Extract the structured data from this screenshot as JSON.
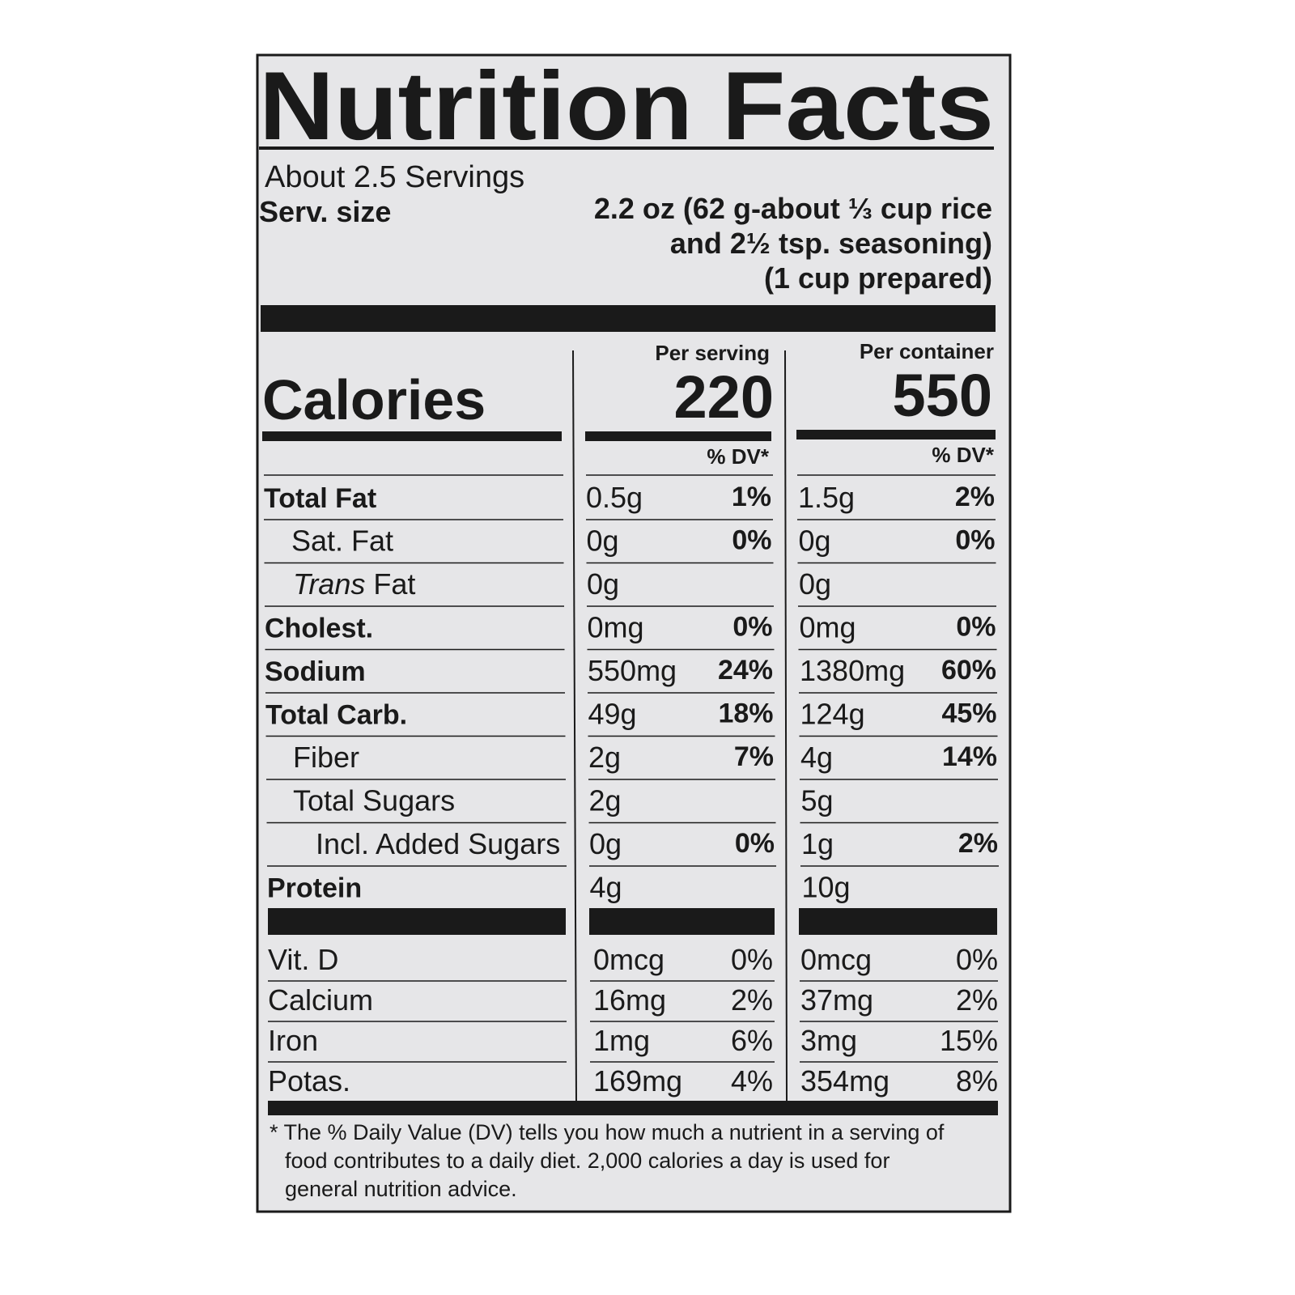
{
  "header": {
    "title": "Nutrition Facts",
    "servings": "About 2.5 Servings",
    "serving_size_label": "Serv. size",
    "serving_size_lines": [
      "2.2 oz (62 g-about ⅓ cup rice",
      "and 2½ tsp. seasoning)",
      "(1 cup prepared)"
    ]
  },
  "calories": {
    "label": "Calories",
    "per_serving_label": "Per serving",
    "per_serving": "220",
    "per_container_label": "Per container",
    "per_container": "550",
    "dv_header_serving": "% DV*",
    "dv_header_container": "% DV*"
  },
  "nutrients": [
    {
      "name": "Total Fat",
      "serving": {
        "amount": "0.5g",
        "dv": "1%"
      },
      "container": {
        "amount": "1.5g",
        "dv": "2%"
      }
    },
    {
      "name": "Sat. Fat",
      "serving": {
        "amount": "0g",
        "dv": "0%"
      },
      "container": {
        "amount": "0g",
        "dv": "0%"
      }
    },
    {
      "name_italic": "Trans",
      "name": "Fat",
      "serving": {
        "amount": "0g"
      },
      "container": {
        "amount": "0g"
      }
    },
    {
      "name": "Cholest.",
      "serving": {
        "amount": "0mg",
        "dv": "0%"
      },
      "container": {
        "amount": "0mg",
        "dv": "0%"
      }
    },
    {
      "name": "Sodium",
      "serving": {
        "amount": "550mg",
        "dv": "24%"
      },
      "container": {
        "amount": "1380mg",
        "dv": "60%"
      }
    },
    {
      "name": "Total Carb.",
      "serving": {
        "amount": "49g",
        "dv": "18%"
      },
      "container": {
        "amount": "124g",
        "dv": "45%"
      }
    },
    {
      "name": "Fiber",
      "serving": {
        "amount": "2g",
        "dv": "7%"
      },
      "container": {
        "amount": "4g",
        "dv": "14%"
      }
    },
    {
      "name": "Total Sugars",
      "serving": {
        "amount": "2g"
      },
      "container": {
        "amount": "5g"
      }
    },
    {
      "name": "Incl. Added Sugars",
      "serving": {
        "amount": "0g",
        "dv": "0%"
      },
      "container": {
        "amount": "1g",
        "dv": "2%"
      }
    },
    {
      "name": "Protein",
      "serving": {
        "amount": "4g"
      },
      "container": {
        "amount": "10g"
      }
    }
  ],
  "vitamins": [
    {
      "name": "Vit. D",
      "serving": {
        "amount": "0mcg",
        "dv": "0%"
      },
      "container": {
        "amount": "0mcg",
        "dv": "0%"
      }
    },
    {
      "name": "Calcium",
      "serving": {
        "amount": "16mg",
        "dv": "2%"
      },
      "container": {
        "amount": "37mg",
        "dv": "2%"
      }
    },
    {
      "name": "Iron",
      "serving": {
        "amount": "1mg",
        "dv": "6%"
      },
      "container": {
        "amount": "3mg",
        "dv": "15%"
      }
    },
    {
      "name": "Potas.",
      "serving": {
        "amount": "169mg",
        "dv": "4%"
      },
      "container": {
        "amount": "354mg",
        "dv": "8%"
      }
    }
  ],
  "footnote_lines": [
    "* The % Daily Value (DV) tells you how much a nutrient in a serving of",
    "food contributes to a daily diet. 2,000 calories a day is used for",
    "general nutrition advice."
  ]
}
